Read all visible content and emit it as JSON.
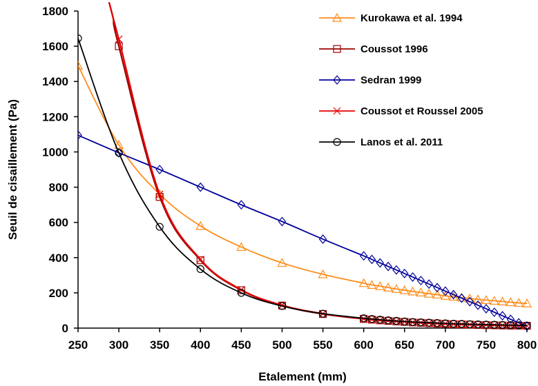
{
  "chart_data": {
    "type": "line",
    "xlabel": "Etalement (mm)",
    "ylabel": "Seuil de cisaillement (Pa)",
    "xlim": [
      250,
      800
    ],
    "ylim": [
      0,
      1800
    ],
    "xticks": [
      250,
      300,
      350,
      400,
      450,
      500,
      550,
      600,
      650,
      700,
      750,
      800
    ],
    "yticks": [
      0,
      200,
      400,
      600,
      800,
      1000,
      1200,
      1400,
      1600,
      1800
    ],
    "grid": false,
    "legend_position": "top-right",
    "series": [
      {
        "name": "Kurokawa et al. 1994",
        "color": "#ff8c1a",
        "marker": "triangle",
        "x": [
          250,
          300,
          350,
          400,
          450,
          500,
          550,
          600,
          610,
          620,
          630,
          640,
          650,
          660,
          670,
          680,
          690,
          700,
          710,
          720,
          730,
          740,
          750,
          760,
          770,
          780,
          790,
          800
        ],
        "y": [
          1490,
          1040,
          760,
          580,
          460,
          370,
          305,
          255,
          245,
          238,
          230,
          222,
          215,
          208,
          202,
          195,
          190,
          183,
          178,
          173,
          168,
          163,
          159,
          155,
          151,
          147,
          143,
          140
        ]
      },
      {
        "name": "Coussot 1996",
        "color": "#990000",
        "marker": "square",
        "x": [
          300,
          350,
          400,
          450,
          500,
          550,
          600,
          610,
          620,
          630,
          640,
          650,
          660,
          670,
          680,
          690,
          700,
          710,
          720,
          730,
          740,
          750,
          760,
          770,
          780,
          790,
          800
        ],
        "y": [
          1600,
          745,
          385,
          215,
          128,
          80,
          52,
          48,
          44,
          41,
          38,
          35,
          32,
          30,
          28,
          26,
          24,
          22,
          21,
          20,
          18,
          17,
          16,
          15,
          14,
          14,
          13
        ]
      },
      {
        "name": "Sedran 1999",
        "color": "#000099",
        "marker": "diamond",
        "x": [
          250,
          300,
          350,
          400,
          450,
          500,
          550,
          600,
          610,
          620,
          630,
          640,
          650,
          660,
          670,
          680,
          690,
          700,
          710,
          720,
          730,
          740,
          750,
          760,
          770,
          780,
          790,
          800
        ],
        "y": [
          1095,
          995,
          900,
          800,
          700,
          605,
          505,
          410,
          390,
          370,
          350,
          330,
          310,
          290,
          270,
          250,
          230,
          210,
          190,
          170,
          150,
          130,
          110,
          90,
          70,
          50,
          30,
          10
        ]
      },
      {
        "name": "Coussot et Roussel 2005",
        "color": "#e60000",
        "marker": "x",
        "x": [
          300,
          350,
          400,
          450,
          500,
          550,
          600,
          610,
          620,
          630,
          640,
          650,
          660,
          670,
          680,
          690,
          700,
          710,
          720,
          730,
          740,
          750,
          760,
          770,
          780,
          790,
          800
        ],
        "y": [
          1640,
          760,
          390,
          218,
          130,
          82,
          53,
          49,
          45,
          42,
          39,
          36,
          33,
          31,
          29,
          27,
          25,
          23,
          22,
          20,
          19,
          18,
          17,
          16,
          15,
          14,
          13
        ]
      },
      {
        "name": "Lanos et al. 2011",
        "color": "#000000",
        "marker": "circle",
        "x": [
          250,
          300,
          350,
          400,
          450,
          500,
          550,
          600,
          610,
          620,
          630,
          640,
          650,
          660,
          670,
          680,
          690,
          700,
          710,
          720,
          730,
          740,
          750,
          760,
          770,
          780,
          790,
          800
        ],
        "y": [
          1645,
          995,
          575,
          335,
          200,
          125,
          82,
          56,
          52,
          48,
          44,
          41,
          38,
          35,
          33,
          31,
          29,
          27,
          25,
          24,
          22,
          21,
          20,
          19,
          18,
          17,
          16,
          15
        ]
      }
    ]
  }
}
